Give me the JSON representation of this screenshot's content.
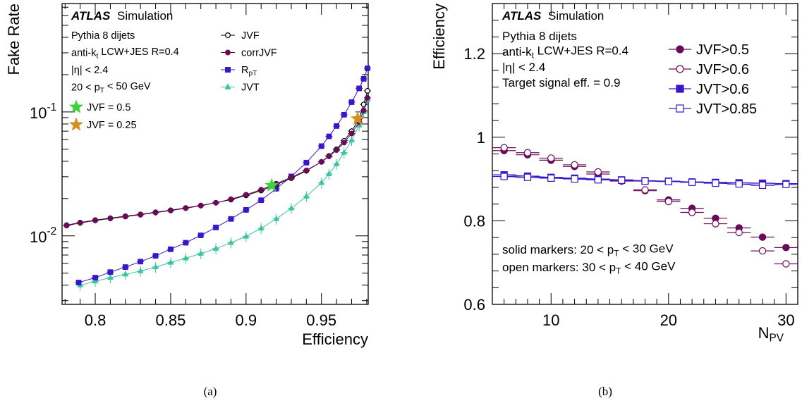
{
  "captions": [
    "(a)",
    "(b)"
  ],
  "colors": {
    "jvf": "#000000",
    "corrjvf": "#6b0a59",
    "rpt": "#3a16c9",
    "jvt": "#3cc4a0",
    "star_green": "#3ad43a",
    "star_orange": "#d4901e",
    "b_dark": "#6b0a59",
    "b_blue": "#3a16c9"
  },
  "chart_data": [
    {
      "type": "line",
      "id": "a",
      "xlabel": "Efficiency",
      "ylabel": "Fake Rate",
      "xlim": [
        0.778,
        0.981
      ],
      "ylim": [
        0.0028,
        0.75
      ],
      "yscale": "log",
      "xticks": [
        "0.8",
        "0.85",
        "0.9",
        "0.95"
      ],
      "yticks_major": [
        "10",
        "10"
      ],
      "yticks_major_exp": [
        "-2",
        "-1"
      ],
      "atlas_label": "ATLAS",
      "atlas_suffix": "Simulation",
      "notes": [
        {
          "text": "Pythia 8 dijets"
        },
        {
          "text": "anti-k",
          "sub": "t",
          "rest": " LCW+JES R=0.4"
        },
        {
          "text": "|η| < 2.4"
        },
        {
          "text": "20 < p",
          "sub": "T",
          "rest": " < 50 GeV"
        }
      ],
      "stars": [
        {
          "label": "JVF = 0.5",
          "color": "star_green",
          "x": 0.917,
          "y": 0.0255
        },
        {
          "label": "JVF = 0.25",
          "color": "star_orange",
          "x": 0.974,
          "y": 0.088
        }
      ],
      "series": [
        {
          "name": "JVF",
          "sub": "",
          "marker": "open-circle",
          "color": "jvf",
          "x": [
            0.781,
            0.79,
            0.8,
            0.81,
            0.82,
            0.83,
            0.84,
            0.85,
            0.86,
            0.87,
            0.88,
            0.89,
            0.9,
            0.91,
            0.92,
            0.93,
            0.94,
            0.95,
            0.955,
            0.96,
            0.965,
            0.97,
            0.975,
            0.978,
            0.9805
          ],
          "y": [
            0.0122,
            0.0128,
            0.0134,
            0.0139,
            0.0144,
            0.0149,
            0.0155,
            0.0161,
            0.0168,
            0.0176,
            0.0185,
            0.0196,
            0.0212,
            0.0232,
            0.0259,
            0.0292,
            0.0335,
            0.0396,
            0.0442,
            0.05,
            0.0585,
            0.07,
            0.088,
            0.115,
            0.148
          ]
        },
        {
          "name": "corrJVF",
          "sub": "",
          "marker": "filled-circle",
          "color": "corrjvf",
          "x": [
            0.781,
            0.79,
            0.8,
            0.81,
            0.82,
            0.83,
            0.84,
            0.85,
            0.86,
            0.87,
            0.88,
            0.89,
            0.9,
            0.91,
            0.92,
            0.93,
            0.94,
            0.95,
            0.955,
            0.96,
            0.965,
            0.97,
            0.975,
            0.978,
            0.9805
          ],
          "y": [
            0.0121,
            0.0127,
            0.0133,
            0.0138,
            0.0143,
            0.0148,
            0.0154,
            0.016,
            0.0167,
            0.0175,
            0.0185,
            0.0198,
            0.0215,
            0.0236,
            0.0264,
            0.0297,
            0.0338,
            0.0395,
            0.0438,
            0.0492,
            0.0565,
            0.067,
            0.083,
            0.103,
            0.13
          ]
        },
        {
          "name": "R",
          "sub": "pT",
          "marker": "filled-square",
          "color": "rpt",
          "x": [
            0.789,
            0.8,
            0.81,
            0.82,
            0.83,
            0.84,
            0.85,
            0.86,
            0.87,
            0.88,
            0.89,
            0.9,
            0.91,
            0.92,
            0.93,
            0.94,
            0.95,
            0.955,
            0.96,
            0.965,
            0.97,
            0.975,
            0.978,
            0.9805
          ],
          "y": [
            0.0042,
            0.0046,
            0.0051,
            0.0056,
            0.0062,
            0.0069,
            0.0078,
            0.0088,
            0.0101,
            0.0117,
            0.0137,
            0.0162,
            0.0194,
            0.024,
            0.0302,
            0.039,
            0.053,
            0.0635,
            0.077,
            0.095,
            0.12,
            0.155,
            0.185,
            0.225
          ]
        },
        {
          "name": "JVT",
          "sub": "",
          "marker": "filled-triangle",
          "color": "jvt",
          "x": [
            0.79,
            0.8,
            0.81,
            0.82,
            0.83,
            0.84,
            0.85,
            0.86,
            0.87,
            0.88,
            0.89,
            0.9,
            0.91,
            0.92,
            0.93,
            0.94,
            0.95,
            0.955,
            0.96,
            0.965,
            0.97,
            0.975,
            0.978,
            0.9805
          ],
          "y": [
            0.004,
            0.0043,
            0.0046,
            0.0049,
            0.0052,
            0.0056,
            0.0061,
            0.0066,
            0.0072,
            0.0079,
            0.0088,
            0.0099,
            0.0115,
            0.0137,
            0.0167,
            0.0208,
            0.0268,
            0.0316,
            0.038,
            0.047,
            0.059,
            0.078,
            0.1,
            0.125
          ]
        }
      ]
    },
    {
      "type": "scatter",
      "id": "b",
      "xlabel": "N",
      "xlabel_sub": "PV",
      "ylabel": "Efficiency",
      "xlim": [
        5,
        31
      ],
      "ylim": [
        0.6,
        1.32
      ],
      "xticks": [
        10,
        20,
        30
      ],
      "yticks": [
        "0.6",
        "0.8",
        "1",
        "1.2"
      ],
      "atlas_label": "ATLAS",
      "atlas_suffix": "Simulation",
      "notes": [
        {
          "text": "Pythia 8 dijets"
        },
        {
          "text": "anti-k",
          "sub": "t",
          "rest": " LCW+JES R=0.4"
        },
        {
          "text": "|η| < 2.4"
        },
        {
          "text": "Target signal eff. = 0.9"
        }
      ],
      "bottom_notes": [
        {
          "text": "solid markers: 20 < p",
          "sub": "T",
          "rest": " < 30 GeV"
        },
        {
          "text": "open markers: 30 < p",
          "sub": "T",
          "rest": " < 40 GeV"
        }
      ],
      "series": [
        {
          "name": "JVF>0.5",
          "marker": "filled-circle",
          "color": "b_dark",
          "x": [
            6,
            8,
            10,
            12,
            14,
            16,
            18,
            20,
            22,
            24,
            26,
            28,
            30
          ],
          "y": [
            0.968,
            0.958,
            0.945,
            0.93,
            0.912,
            0.895,
            0.872,
            0.85,
            0.83,
            0.806,
            0.783,
            0.761,
            0.736
          ]
        },
        {
          "name": "JVF>0.6",
          "marker": "open-circle",
          "color": "b_dark",
          "x": [
            6,
            8,
            10,
            12,
            14,
            16,
            18,
            20,
            22,
            24,
            26,
            28,
            30
          ],
          "y": [
            0.975,
            0.963,
            0.95,
            0.934,
            0.917,
            0.896,
            0.874,
            0.846,
            0.82,
            0.793,
            0.772,
            0.728,
            0.697
          ]
        },
        {
          "name": "JVT>0.6",
          "marker": "filled-square",
          "color": "b_blue",
          "x": [
            6,
            8,
            10,
            12,
            14,
            16,
            18,
            20,
            22,
            24,
            26,
            28,
            30
          ],
          "y": [
            0.91,
            0.907,
            0.904,
            0.902,
            0.9,
            0.898,
            0.896,
            0.895,
            0.893,
            0.892,
            0.891,
            0.89,
            0.889
          ]
        },
        {
          "name": "JVT>0.85",
          "marker": "open-square",
          "color": "b_blue",
          "x": [
            6,
            8,
            10,
            12,
            14,
            16,
            18,
            20,
            22,
            24,
            26,
            28,
            30
          ],
          "y": [
            0.906,
            0.904,
            0.902,
            0.9,
            0.898,
            0.897,
            0.895,
            0.894,
            0.892,
            0.89,
            0.888,
            0.885,
            0.887
          ]
        }
      ]
    }
  ]
}
